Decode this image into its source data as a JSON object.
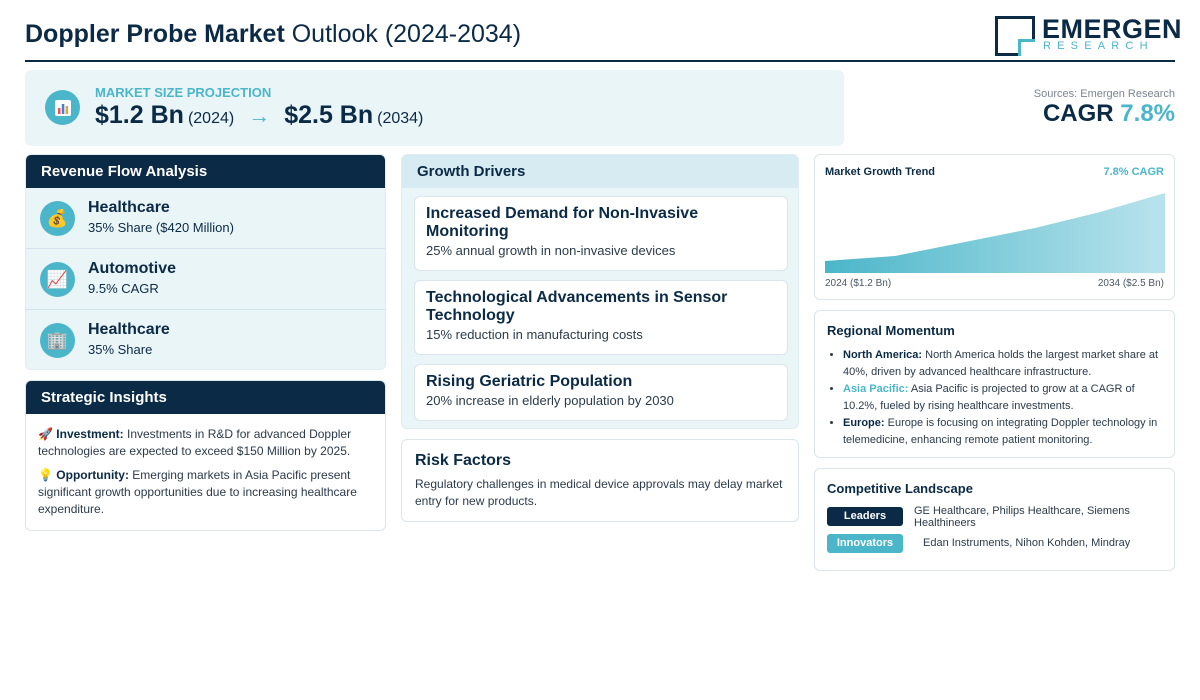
{
  "header": {
    "title_bold": "Doppler Probe Market",
    "title_rest": " Outlook (2024-2034)",
    "logo_main": "EMERGEN",
    "logo_sub": "RESEARCH"
  },
  "projection": {
    "label": "MARKET SIZE PROJECTION",
    "icon": "bar-chart-icon",
    "start_value": "$1.2 Bn",
    "start_year": "(2024)",
    "arrow": "→",
    "end_value": "$2.5 Bn",
    "end_year": "(2034)"
  },
  "sources": "Sources: Emergen Research",
  "cagr": {
    "label": "CAGR",
    "value": "7.8%"
  },
  "revenue": {
    "title": "Revenue Flow Analysis",
    "items": [
      {
        "icon": "money-bag-icon",
        "glyph": "💰",
        "title": "Healthcare",
        "sub": "35% Share ($420 Million)"
      },
      {
        "icon": "trend-chart-icon",
        "glyph": "📈",
        "title": "Automotive",
        "sub": "9.5% CAGR"
      },
      {
        "icon": "building-icon",
        "glyph": "🏢",
        "title": "Healthcare",
        "sub": "35% Share"
      }
    ]
  },
  "strategic": {
    "title": "Strategic Insights",
    "items": [
      {
        "glyph": "🚀",
        "label": "Investment:",
        "text": " Investments in R&D for advanced Doppler technologies are expected to exceed $150 Million by 2025."
      },
      {
        "glyph": "💡",
        "label": "Opportunity:",
        "text": " Emerging markets in Asia Pacific present significant growth opportunities due to increasing healthcare expenditure."
      }
    ]
  },
  "drivers": {
    "title": "Growth Drivers",
    "items": [
      {
        "title": "Increased Demand for Non-Invasive Monitoring",
        "sub": "25% annual growth in non-invasive devices"
      },
      {
        "title": "Technological Advancements in Sensor Technology",
        "sub": "15% reduction in manufacturing costs"
      },
      {
        "title": "Rising Geriatric Population",
        "sub": "20% increase in elderly population by 2030"
      }
    ]
  },
  "risk": {
    "title": "Risk Factors",
    "text": "Regulatory challenges in medical device approvals may delay market entry for new products."
  },
  "trend": {
    "title": "Market Growth Trend",
    "cagr": "7.8% CAGR",
    "left_label": "2024 ($1.2 Bn)",
    "right_label": "2034 ($2.5 Bn)"
  },
  "regional": {
    "title": "Regional Momentum",
    "items": [
      {
        "region": "North America:",
        "text": " North America holds the largest market share at 40%, driven by advanced healthcare infrastructure."
      },
      {
        "region": "Asia Pacific:",
        "text": " Asia Pacific is projected to grow at a CAGR of 10.2%, fueled by rising healthcare investments."
      },
      {
        "region": "Europe:",
        "text": " Europe is focusing on integrating Doppler technology in telemedicine, enhancing remote patient monitoring."
      }
    ]
  },
  "competitive": {
    "title": "Competitive Landscape",
    "leaders_label": "Leaders",
    "leaders": "GE Healthcare, Philips Healthcare, Siemens Healthineers",
    "innovators_label": "Innovators",
    "innovators": "Edan Instruments, Nihon Kohden, Mindray"
  },
  "colors": {
    "navy": "#0b2a45",
    "accent": "#4bb6c9",
    "panel": "#eaf5f8"
  }
}
